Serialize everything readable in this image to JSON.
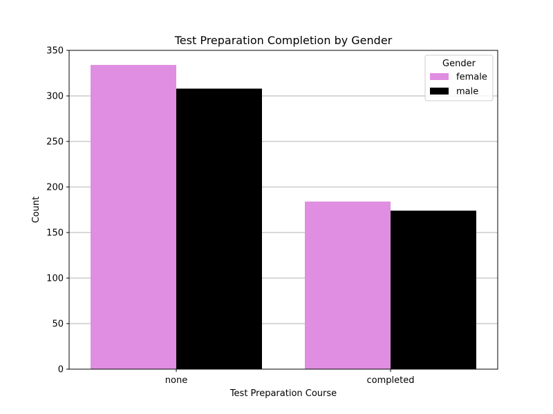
{
  "chart_data": {
    "type": "bar",
    "title": "Test Preparation Completion by Gender",
    "xlabel": "Test Preparation Course",
    "ylabel": "Count",
    "categories": [
      "none",
      "completed"
    ],
    "series": [
      {
        "name": "female",
        "values": [
          334,
          184
        ],
        "color": "#df8ee1"
      },
      {
        "name": "male",
        "values": [
          308,
          174
        ],
        "color": "#000000"
      }
    ],
    "ylim": [
      0,
      350
    ],
    "yticks": [
      0,
      50,
      100,
      150,
      200,
      250,
      300,
      350
    ],
    "ytick_labels": [
      "0",
      "50",
      "100",
      "150",
      "200",
      "250",
      "300",
      "350"
    ],
    "grid": {
      "axis": "y",
      "color": "#b0b0b0"
    },
    "legend": {
      "title": "Gender",
      "position": "upper right"
    }
  }
}
